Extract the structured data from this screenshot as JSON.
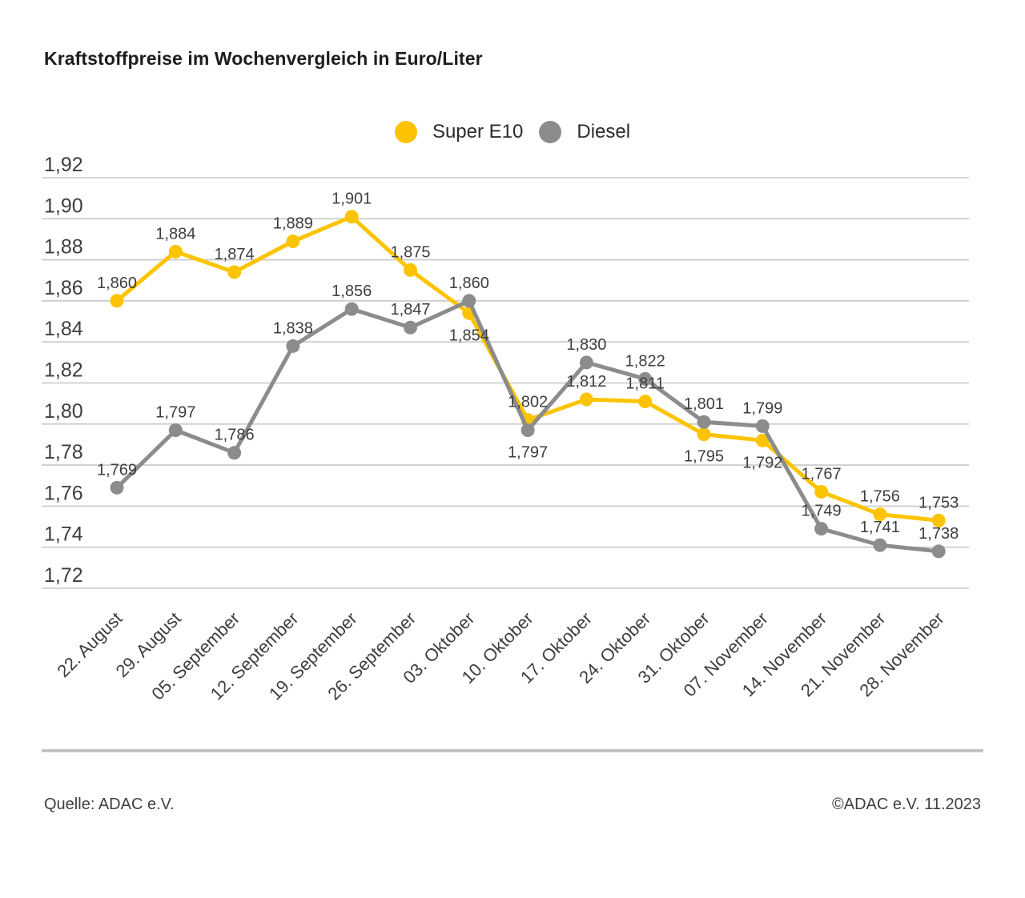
{
  "title": "Kraftstoffpreise im Wochenvergleich in Euro/Liter",
  "footer": {
    "source": "Quelle: ADAC e.V.",
    "copyright": "©ADAC e.V. 11.2023"
  },
  "colors": {
    "super_e10": "#fcc400",
    "diesel": "#8c8c8c",
    "grid": "#c8c8c8",
    "text": "#3e3e3e"
  },
  "chart_data": {
    "type": "line",
    "title": "Kraftstoffpreise im Wochenvergleich in Euro/Liter",
    "xlabel": "",
    "ylabel": "Euro/Liter",
    "grid": true,
    "legend_position": "top-center",
    "y_min": 1.72,
    "y_max": 1.92,
    "y_ticks": [
      "1,92",
      "1,90",
      "1,88",
      "1,86",
      "1,84",
      "1,82",
      "1,80",
      "1,78",
      "1,76",
      "1,74",
      "1,72"
    ],
    "categories": [
      "22. August",
      "29. August",
      "05. September",
      "12. September",
      "19. September",
      "26. September",
      "03. Oktober",
      "10. Oktober",
      "17. Oktober",
      "24. Oktober",
      "31. Oktober",
      "07. November",
      "14. November",
      "21. November",
      "28. November"
    ],
    "series": [
      {
        "name": "Super E10",
        "color": "#fcc400",
        "values": [
          1.86,
          1.884,
          1.874,
          1.889,
          1.901,
          1.875,
          1.854,
          1.802,
          1.812,
          1.811,
          1.795,
          1.792,
          1.767,
          1.756,
          1.753
        ],
        "labels": [
          "1,860",
          "1,884",
          "1,874",
          "1,889",
          "1,901",
          "1,875",
          "1,854",
          "1,802",
          "1,812",
          "1,811",
          "1,795",
          "1,792",
          "1,767",
          "1,756",
          "1,753"
        ],
        "label_side": [
          "above",
          "above",
          "above",
          "above",
          "above",
          "above",
          "below",
          "above",
          "above",
          "above",
          "below",
          "below",
          "above",
          "above",
          "above"
        ]
      },
      {
        "name": "Diesel",
        "color": "#8c8c8c",
        "values": [
          1.769,
          1.797,
          1.786,
          1.838,
          1.856,
          1.847,
          1.86,
          1.797,
          1.83,
          1.822,
          1.801,
          1.799,
          1.749,
          1.741,
          1.738
        ],
        "labels": [
          "1,769",
          "1,797",
          "1,786",
          "1,838",
          "1,856",
          "1,847",
          "1,860",
          "1,797",
          "1,830",
          "1,822",
          "1,801",
          "1,799",
          "1,749",
          "1,741",
          "1,738"
        ],
        "label_side": [
          "above",
          "above",
          "above",
          "above",
          "above",
          "above",
          "above",
          "below",
          "above",
          "above",
          "above",
          "above",
          "above",
          "above",
          "above"
        ]
      }
    ]
  }
}
